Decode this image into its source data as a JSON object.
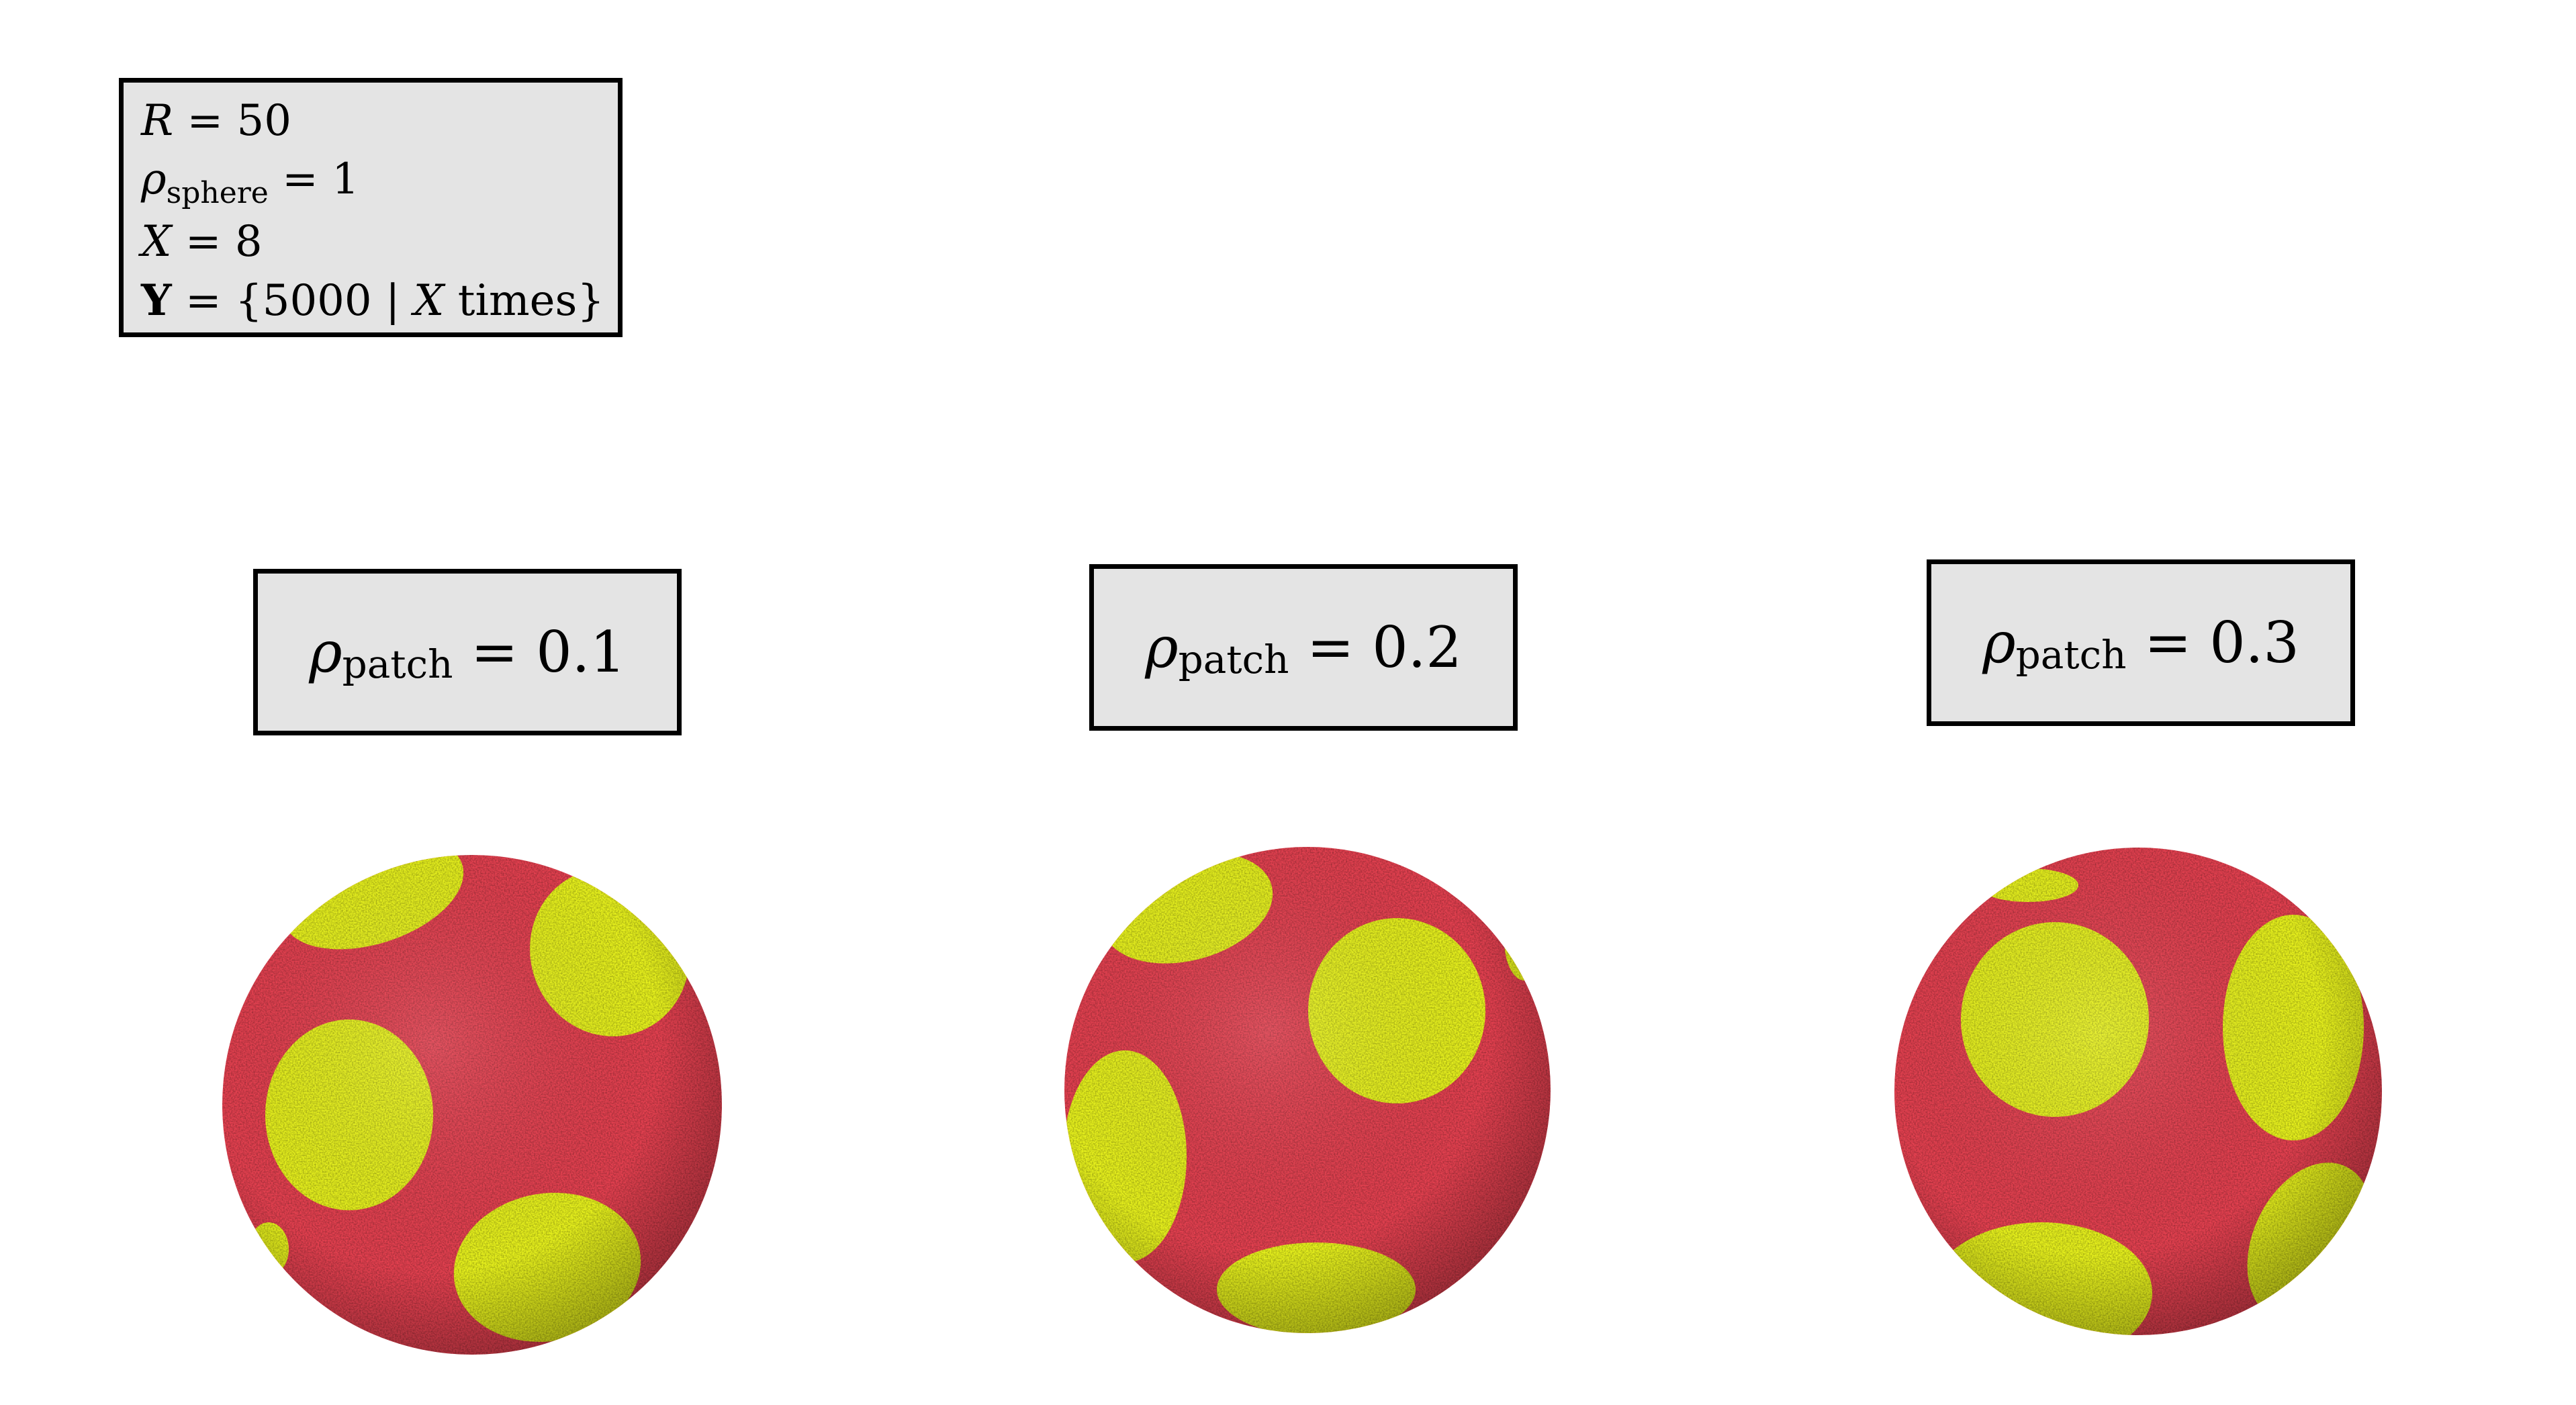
{
  "params": {
    "r_sym": "R",
    "r_val": "= 50",
    "rho_sym": "ρ",
    "rho_sub": "sphere",
    "rho_val": "= 1",
    "x_sym": "X",
    "x_val": "= 8",
    "y_sym": "Y",
    "y_val_pre": "= {5000 | ",
    "y_val_x": "X",
    "y_val_post": " times}"
  },
  "panels": [
    {
      "sym": "ρ",
      "sub": "patch",
      "val": "= 0.1"
    },
    {
      "sym": "ρ",
      "sub": "patch",
      "val": "= 0.2"
    },
    {
      "sym": "ρ",
      "sub": "patch",
      "val": "= 0.3"
    }
  ],
  "colors": {
    "sphere": "#e3404f",
    "patch": "#e6f01c",
    "box_fill": "#e4e4e4",
    "border": "#000000"
  }
}
